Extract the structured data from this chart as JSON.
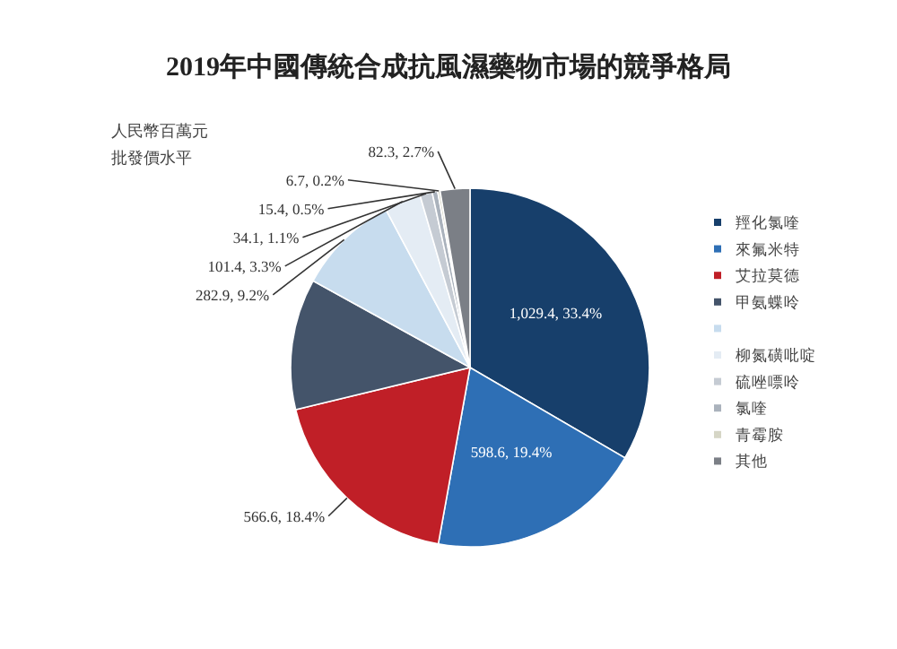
{
  "chart_data": {
    "type": "pie",
    "title": "2019年中國傳統合成抗風濕藥物市場的競爭格局",
    "annotations": [
      "人民幣百萬元",
      "批發價水平"
    ],
    "categories": [
      "羥化氯喹",
      "來氟米特",
      "艾拉莫德",
      "甲氨蝶呤",
      null,
      "柳氮磺吡啶",
      "硫唑嘌呤",
      "氯喹",
      "青霉胺",
      "其他"
    ],
    "values": [
      1029.4,
      598.6,
      566.6,
      364,
      282.9,
      101.4,
      34.1,
      15.4,
      6.7,
      82.3
    ],
    "value_labels": [
      "1,029.4, 33.4%",
      "598.6, 19.4%",
      "566.6, 18.4%",
      null,
      "282.9, 9.2%",
      "101.4, 3.3%",
      "34.1, 1.1%",
      "15.4, 0.5%",
      "6.7, 0.2%",
      "82.3, 2.7%"
    ],
    "colors": [
      "#173f6b",
      "#2e6fb5",
      "#c01f27",
      "#44546a",
      "#c7dcee",
      "#e4ecf4",
      "#c5cbd3",
      "#aab2bc",
      "#d6d6c6",
      "#7b7f86"
    ],
    "legend": "right"
  }
}
